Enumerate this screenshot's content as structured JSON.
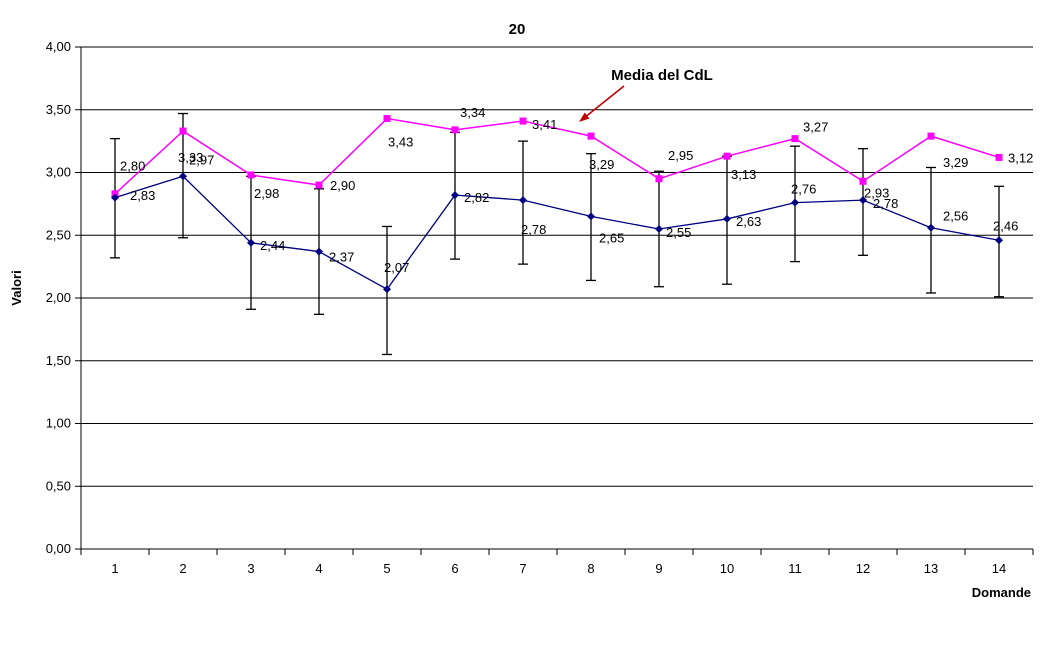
{
  "chart_data": {
    "type": "line",
    "title": "20",
    "xlabel": "Domande",
    "ylabel": "Valori",
    "ylim": [
      0,
      4
    ],
    "ytick_step": 0.5,
    "ytick_labels": [
      "0,00",
      "0,50",
      "1,00",
      "1,50",
      "2,00",
      "2,50",
      "3,00",
      "3,50",
      "4,00"
    ],
    "grid": true,
    "legend_position": "none",
    "categories": [
      "1",
      "2",
      "3",
      "4",
      "5",
      "6",
      "7",
      "8",
      "9",
      "10",
      "11",
      "12",
      "13",
      "14"
    ],
    "series": [
      {
        "name": "Media del CdL",
        "color": "#FF00FF",
        "marker": "square",
        "values": [
          2.83,
          3.33,
          2.98,
          2.9,
          3.43,
          3.34,
          3.41,
          3.29,
          2.95,
          3.13,
          3.27,
          2.93,
          3.29,
          3.12
        ],
        "labels": [
          "2,83",
          "3,33",
          "2,98",
          "2,90",
          "3,43",
          "3,34",
          "3,41",
          "3,29",
          "2,95",
          "3,13",
          "3,27",
          "2,93",
          "3,29",
          "3,12"
        ]
      },
      {
        "name": "",
        "color": "#000080",
        "marker": "diamond",
        "values": [
          2.8,
          2.97,
          2.44,
          2.37,
          2.07,
          2.82,
          2.78,
          2.65,
          2.55,
          2.63,
          2.76,
          2.78,
          2.56,
          2.46
        ],
        "labels": [
          "2,80",
          "2,97",
          "2,44",
          "2,37",
          "2,07",
          "2,82",
          "2,78",
          "2,65",
          "2,55",
          "2,63",
          "2,76",
          "2,78",
          "2,56",
          "2,46"
        ],
        "error_bars": {
          "color": "#000000",
          "upper": [
            3.27,
            3.47,
            2.97,
            2.87,
            2.57,
            3.32,
            3.25,
            3.15,
            3.01,
            3.13,
            3.21,
            3.19,
            3.04,
            2.89
          ],
          "lower": [
            2.32,
            2.48,
            1.91,
            1.87,
            1.55,
            2.31,
            2.27,
            2.14,
            2.09,
            2.11,
            2.29,
            2.34,
            2.04,
            2.01
          ]
        }
      }
    ],
    "annotation": {
      "text": "Media del CdL",
      "arrow_color": "#C00000",
      "points_to_series": "Media del CdL"
    }
  }
}
